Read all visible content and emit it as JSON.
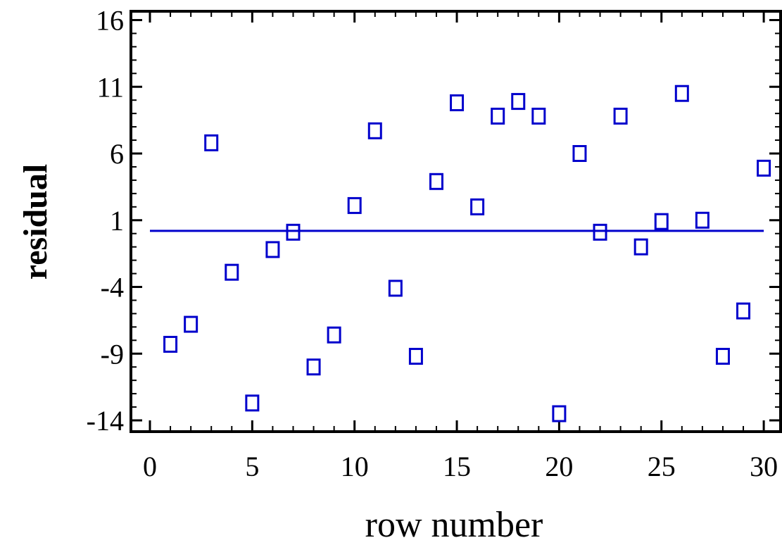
{
  "chart_data": {
    "type": "scatter",
    "title": "",
    "xlabel": "row number",
    "ylabel": "residual",
    "xlim": [
      -1,
      31
    ],
    "ylim": [
      -14.5,
      16
    ],
    "x_ticks": [
      0,
      5,
      10,
      15,
      20,
      25,
      30
    ],
    "y_ticks": [
      -14,
      -9,
      -4,
      1,
      6,
      11,
      16
    ],
    "grid": false,
    "legend": "none",
    "marker": "hollow-square",
    "marker_color": "#0000cc",
    "reference_line": {
      "y": 0.2,
      "color": "#0000cc"
    },
    "series": [
      {
        "x": [
          1,
          2,
          3,
          4,
          5,
          6,
          7,
          8,
          9,
          10,
          11,
          12,
          13,
          14,
          15,
          16,
          17,
          18,
          19,
          20,
          21,
          22,
          23,
          24,
          25,
          26,
          27,
          28,
          29,
          30
        ],
        "y": [
          -8.3,
          -6.8,
          6.8,
          -2.9,
          -12.7,
          -1.2,
          0.1,
          -10.0,
          -7.6,
          2.1,
          7.7,
          -4.1,
          -9.2,
          3.9,
          9.8,
          2.0,
          8.8,
          9.9,
          8.8,
          -13.5,
          6.0,
          0.1,
          8.8,
          -1.0,
          0.9,
          10.5,
          1.0,
          -9.2,
          -5.8,
          4.9
        ]
      }
    ]
  }
}
